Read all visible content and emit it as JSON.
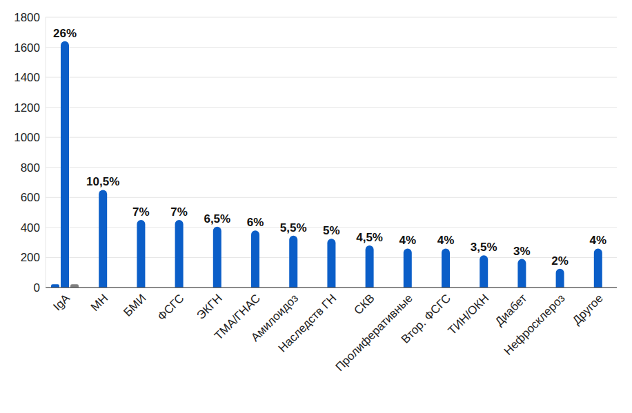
{
  "chart_data": {
    "type": "bar",
    "categories": [
      "IgA",
      "МН",
      "БМИ",
      "ФСГС",
      "ЭКГН",
      "ТМА/ГНАС",
      "Амилоидоз",
      "Наследств ГН",
      "СКВ",
      "Пролиферативные",
      "Втор. ФСГС",
      "ТИН/ОКН",
      "Диабет",
      "Нефросклероз",
      "Другое"
    ],
    "series": [
      {
        "color": "#0b5ec8",
        "values": [
          22,
          null,
          null,
          null,
          null,
          null,
          null,
          null,
          null,
          null,
          null,
          null,
          null,
          null,
          null
        ]
      },
      {
        "color": "#0b5ec8",
        "values": [
          1640,
          650,
          450,
          450,
          405,
          380,
          345,
          325,
          280,
          260,
          260,
          215,
          190,
          125,
          260
        ],
        "share_labels": [
          "26%",
          "10,5%",
          "7%",
          "7%",
          "6,5%",
          "6%",
          "5,5%",
          "5%",
          "4,5%",
          "4%",
          "4%",
          "3,5%",
          "3%",
          "2%",
          "4%"
        ]
      },
      {
        "color": "#808080",
        "values": [
          22,
          null,
          null,
          null,
          null,
          null,
          null,
          null,
          null,
          null,
          null,
          null,
          null,
          null,
          null
        ]
      }
    ],
    "ylim": [
      0,
      1800
    ],
    "yticks": [
      0,
      200,
      400,
      600,
      800,
      1000,
      1200,
      1400,
      1600,
      1800
    ],
    "grid": true
  }
}
